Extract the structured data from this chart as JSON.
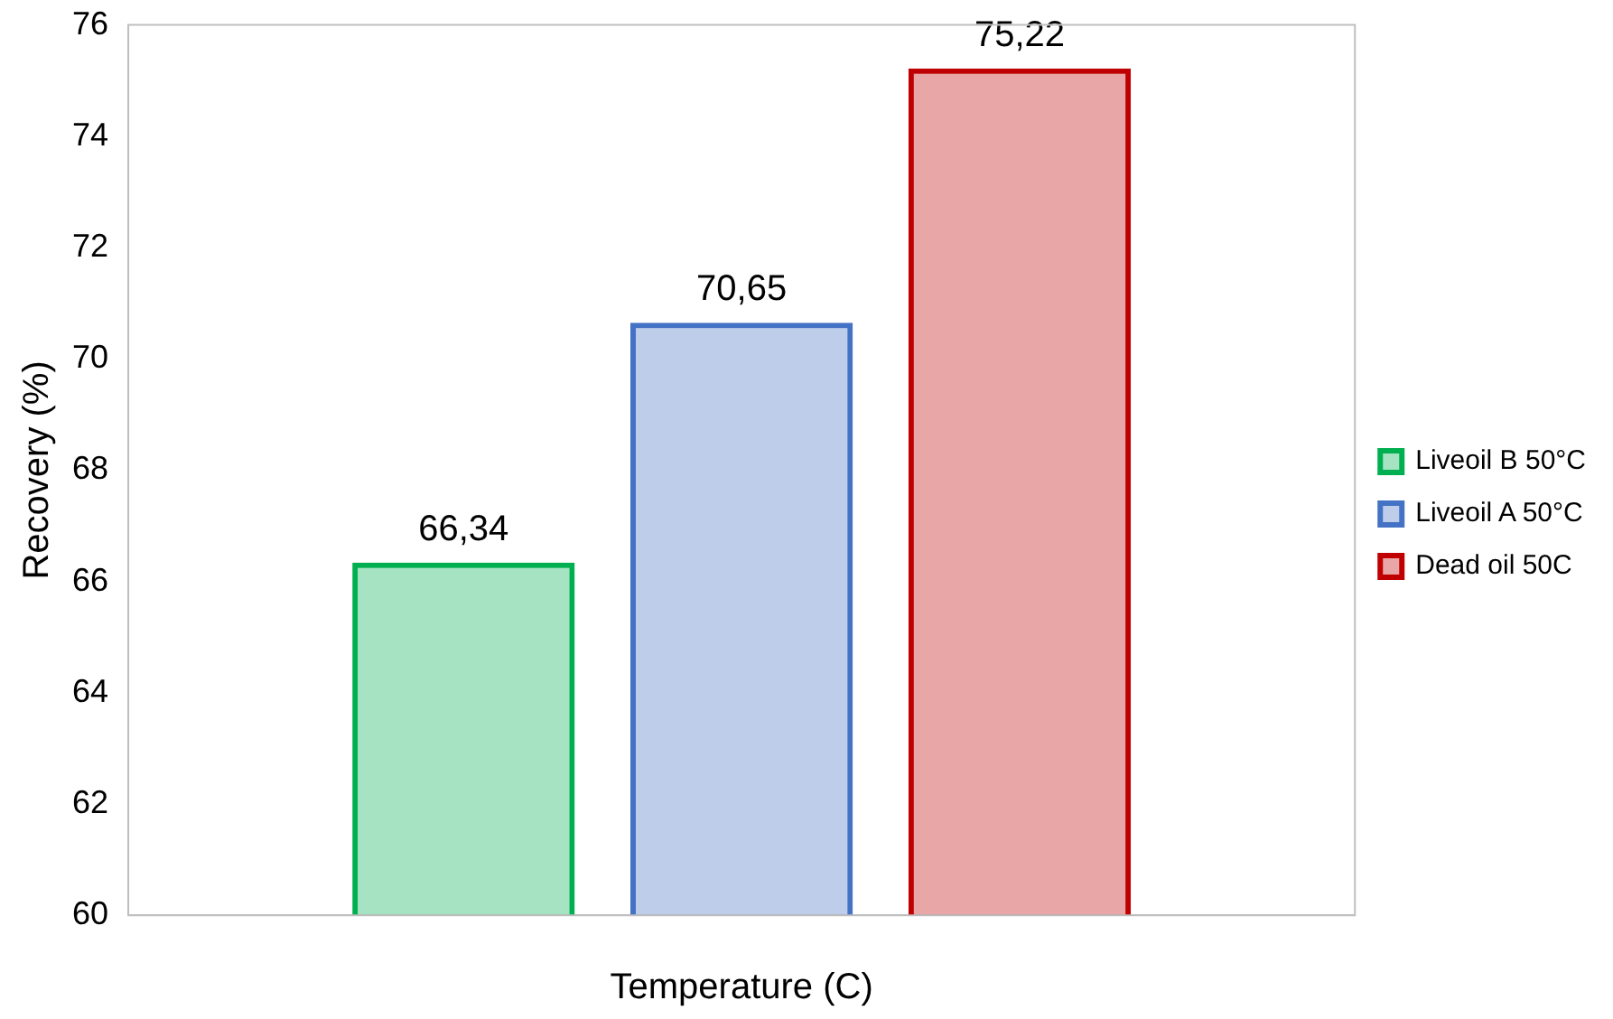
{
  "chart_data": {
    "type": "bar",
    "xlabel": "Temperature (C)",
    "ylabel": "Recovery (%)",
    "categories": [
      null
    ],
    "series": [
      {
        "name": "Liveoil B 50°C",
        "color": "#00b050",
        "values": [
          66.34
        ],
        "value_labels": [
          "66,34"
        ]
      },
      {
        "name": "Liveoil A 50°C",
        "color": "#4472c4",
        "values": [
          70.65
        ],
        "value_labels": [
          "70,65"
        ]
      },
      {
        "name": "Dead oil 50C",
        "color": "#c00000",
        "values": [
          75.22
        ],
        "value_labels": [
          "75,22"
        ]
      }
    ],
    "ylim": [
      60,
      76
    ],
    "yticks": [
      60,
      62,
      64,
      66,
      68,
      70,
      72,
      74,
      76
    ],
    "grid": false,
    "legend": "right"
  }
}
